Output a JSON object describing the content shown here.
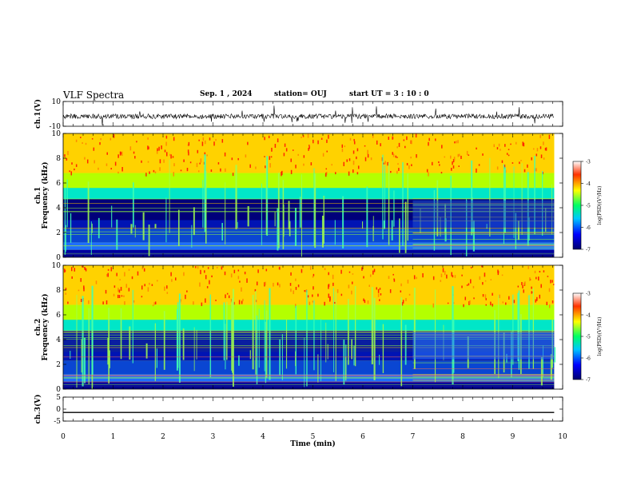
{
  "header": {
    "title": "VLF Spectra",
    "date": "Sep. 1 , 2024",
    "station": "station= OUJ",
    "start": "start  UT =  3 : 10 : 0"
  },
  "colorbar": {
    "label": "log(PSD)(V²/Hz)",
    "ticks": [
      -3,
      -4,
      -5,
      -6,
      -7
    ],
    "colors": [
      "#00006e",
      "#0000ff",
      "#00c8ff",
      "#00ff64",
      "#ffff00",
      "#ff3200",
      "#ffffff"
    ]
  },
  "chart_data": [
    {
      "type": "line",
      "panel": "ch1-waveform",
      "ylabel": "ch.1(V)",
      "ylim": [
        -10,
        10
      ],
      "yticks": [
        10,
        -10
      ],
      "x": [
        0,
        1,
        2,
        3,
        4,
        5,
        6,
        7,
        8,
        9,
        9.83
      ],
      "y": [
        -2,
        -2,
        -2,
        -2,
        -2,
        -2,
        -2,
        -2,
        -2,
        -2,
        -2
      ]
    },
    {
      "type": "heatmap",
      "panel": "ch1-spectrogram",
      "ylabel": "ch.1 Frequency (kHz)",
      "ylim": [
        0,
        10
      ],
      "yticks": [
        0,
        2,
        4,
        6,
        8,
        10
      ],
      "xlim": [
        0,
        9.83
      ],
      "zlim": [
        -7,
        -3
      ]
    },
    {
      "type": "heatmap",
      "panel": "ch2-spectrogram",
      "ylabel": "ch.2 Frequency (kHz)",
      "ylim": [
        0,
        10
      ],
      "yticks": [
        0,
        2,
        4,
        6,
        8,
        10
      ],
      "xlim": [
        0,
        9.83
      ],
      "zlim": [
        -7,
        -3
      ]
    },
    {
      "type": "line",
      "panel": "ch3-waveform",
      "ylabel": "ch.3(V)",
      "ylim": [
        -5,
        5
      ],
      "yticks": [
        5,
        0,
        -5
      ],
      "x": [
        0,
        9.83
      ],
      "y": [
        -1.4,
        -1.4
      ]
    }
  ],
  "xaxis": {
    "label": "Time (min)",
    "ticks": [
      0,
      1,
      2,
      3,
      4,
      5,
      6,
      7,
      8,
      9,
      10
    ],
    "range": [
      0,
      10
    ]
  }
}
